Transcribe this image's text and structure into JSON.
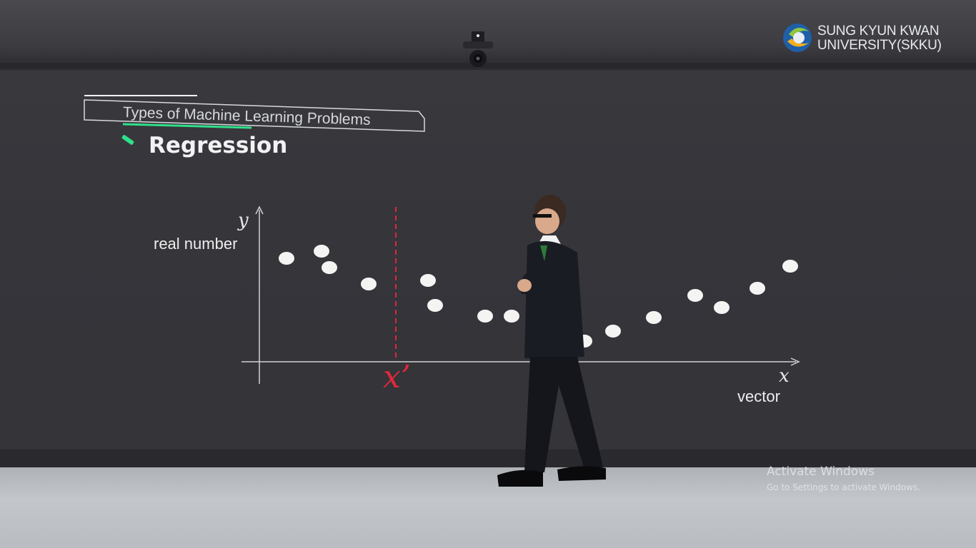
{
  "logo": {
    "line1": "SUNG KYUN KWAN",
    "line2": "UNIVERSITY(SKKU)"
  },
  "slide": {
    "header": "Types of Machine Learning Problems",
    "title": "Regression",
    "accent_color": "#2fe08a",
    "marker_color": "#e0283c"
  },
  "chart_data": {
    "type": "scatter",
    "y_variable": "y",
    "ylabel": "real number",
    "x_variable": "x",
    "xlabel": "vector",
    "query_label": "x’",
    "grid": false
  },
  "watermark": {
    "title": "Activate Windows",
    "subtitle": "Go to Settings to activate Windows."
  },
  "icons": [
    "university-emblem-icon",
    "ceiling-camera-icon"
  ]
}
